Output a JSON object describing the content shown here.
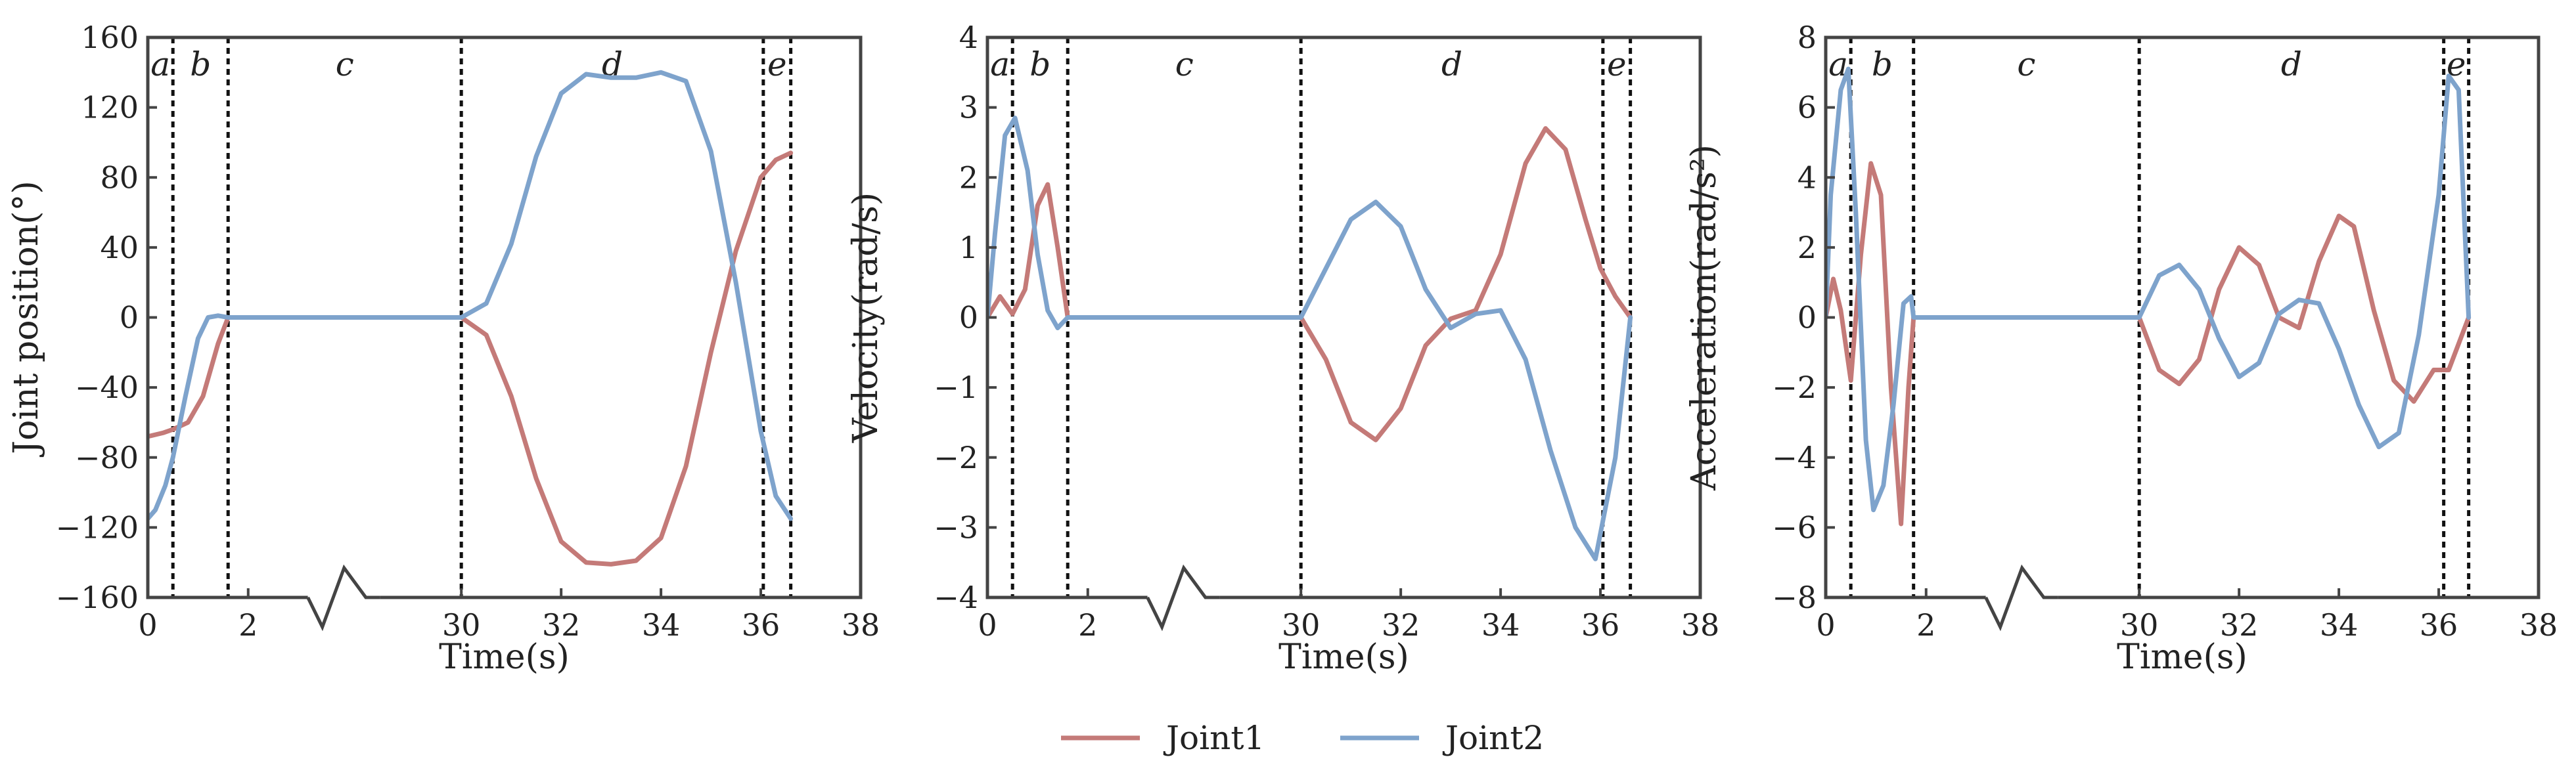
{
  "chart_data": [
    {
      "type": "line",
      "xlabel": "Time(s)",
      "ylabel": "Joint position(°)",
      "xlim": [
        0,
        38
      ],
      "ylim": [
        -160,
        160
      ],
      "xticks": [
        0,
        2,
        30,
        32,
        34,
        36,
        38
      ],
      "yticks": [
        160,
        120,
        80,
        40,
        0,
        -40,
        -80,
        -120,
        -160
      ],
      "ytick_labels": [
        "160",
        "120",
        "80",
        "40",
        "0",
        "−40",
        "−80",
        "−120",
        "−160"
      ],
      "axis_break": "between 2 and 30",
      "phase_boundaries": [
        0.5,
        1.6,
        30,
        36.05,
        36.6
      ],
      "phases": [
        "a",
        "b",
        "c",
        "d",
        "e"
      ],
      "series": [
        {
          "name": "Joint1",
          "color": "#c47a78",
          "x": [
            0,
            0.3,
            0.5,
            0.8,
            1.1,
            1.4,
            1.6,
            2.5,
            30,
            30.5,
            31,
            31.5,
            32,
            32.5,
            33,
            33.5,
            34,
            34.5,
            35,
            35.5,
            36,
            36.3,
            36.6
          ],
          "y": [
            -68,
            -66,
            -64,
            -60,
            -45,
            -15,
            0,
            0,
            0,
            -10,
            -45,
            -92,
            -128,
            -140,
            -141,
            -139,
            -126,
            -85,
            -20,
            38,
            80,
            90,
            94
          ]
        },
        {
          "name": "Joint2",
          "color": "#7ea3cc",
          "x": [
            0,
            0.15,
            0.35,
            0.5,
            0.75,
            1.0,
            1.2,
            1.4,
            1.6,
            2.5,
            30,
            30.5,
            31,
            31.5,
            32,
            32.5,
            33,
            33.5,
            34,
            34.5,
            35,
            35.5,
            36,
            36.3,
            36.6
          ],
          "y": [
            -115,
            -110,
            -96,
            -80,
            -45,
            -12,
            0,
            1,
            0,
            0,
            0,
            8,
            42,
            92,
            128,
            139,
            137,
            137,
            140,
            135,
            95,
            20,
            -65,
            -102,
            -115
          ]
        }
      ]
    },
    {
      "type": "line",
      "xlabel": "Time(s)",
      "ylabel": "Velocity(rad/s)",
      "xlim": [
        0,
        38
      ],
      "ylim": [
        -4,
        4
      ],
      "xticks": [
        0,
        2,
        30,
        32,
        34,
        36,
        38
      ],
      "yticks": [
        4,
        3,
        2,
        1,
        0,
        -1,
        -2,
        -3,
        -4
      ],
      "ytick_labels": [
        "4",
        "3",
        "2",
        "1",
        "0",
        "−1",
        "−2",
        "−3",
        "−4"
      ],
      "axis_break": "between 2 and 30",
      "phase_boundaries": [
        0.5,
        1.6,
        30,
        36.05,
        36.6
      ],
      "phases": [
        "a",
        "b",
        "c",
        "d",
        "e"
      ],
      "series": [
        {
          "name": "Joint1",
          "color": "#c47a78",
          "x": [
            0,
            0.25,
            0.5,
            0.75,
            1.0,
            1.2,
            1.4,
            1.6,
            2.5,
            30,
            30.5,
            31,
            31.5,
            32,
            32.5,
            33,
            33.5,
            34,
            34.5,
            34.9,
            35.3,
            35.7,
            36,
            36.3,
            36.6
          ],
          "y": [
            0,
            0.3,
            0.05,
            0.4,
            1.6,
            1.9,
            1.0,
            0,
            0,
            0,
            -0.6,
            -1.5,
            -1.75,
            -1.3,
            -0.4,
            -0.02,
            0.1,
            0.9,
            2.2,
            2.7,
            2.4,
            1.4,
            0.7,
            0.3,
            0
          ]
        },
        {
          "name": "Joint2",
          "color": "#7ea3cc",
          "x": [
            0,
            0.15,
            0.35,
            0.55,
            0.8,
            1.0,
            1.2,
            1.4,
            1.6,
            2.5,
            30,
            30.5,
            31,
            31.5,
            32,
            32.5,
            33,
            33.5,
            34,
            34.5,
            35,
            35.5,
            35.9,
            36.3,
            36.6
          ],
          "y": [
            0,
            1.2,
            2.6,
            2.85,
            2.1,
            0.9,
            0.1,
            -0.15,
            0,
            0,
            0,
            0.7,
            1.4,
            1.65,
            1.3,
            0.4,
            -0.15,
            0.05,
            0.1,
            -0.6,
            -1.9,
            -3.0,
            -3.45,
            -2.0,
            0
          ]
        }
      ]
    },
    {
      "type": "line",
      "xlabel": "Time(s)",
      "ylabel": "Acceleration(rad/s²)",
      "xlim": [
        0,
        38
      ],
      "ylim": [
        -8,
        8
      ],
      "xticks": [
        0,
        2,
        30,
        32,
        34,
        36,
        38
      ],
      "yticks": [
        8,
        6,
        4,
        2,
        0,
        -2,
        -4,
        -6,
        -8
      ],
      "ytick_labels": [
        "8",
        "6",
        "4",
        "2",
        "0",
        "−2",
        "−4",
        "−6",
        "−8"
      ],
      "axis_break": "between 2 and 30",
      "phase_boundaries": [
        0.5,
        1.75,
        30,
        36.1,
        36.6
      ],
      "phases": [
        "a",
        "b",
        "c",
        "d",
        "e"
      ],
      "series": [
        {
          "name": "Joint1",
          "color": "#c47a78",
          "x": [
            0,
            0.15,
            0.3,
            0.5,
            0.7,
            0.9,
            1.1,
            1.3,
            1.5,
            1.65,
            1.75,
            2.5,
            30,
            30.4,
            30.8,
            31.2,
            31.6,
            32,
            32.4,
            32.8,
            33.2,
            33.6,
            34,
            34.3,
            34.7,
            35.1,
            35.5,
            35.9,
            36.2,
            36.6
          ],
          "y": [
            0,
            1.1,
            0.2,
            -1.8,
            1.8,
            4.4,
            3.5,
            -2.0,
            -5.9,
            -2.0,
            0,
            0,
            0,
            -1.5,
            -1.9,
            -1.2,
            0.8,
            2.0,
            1.5,
            0.0,
            -0.3,
            1.6,
            2.9,
            2.6,
            0.2,
            -1.8,
            -2.4,
            -1.5,
            -1.5,
            0
          ]
        },
        {
          "name": "Joint2",
          "color": "#7ea3cc",
          "x": [
            0,
            0.1,
            0.3,
            0.45,
            0.6,
            0.8,
            0.95,
            1.15,
            1.35,
            1.55,
            1.7,
            1.75,
            2.5,
            30,
            30.4,
            30.8,
            31.2,
            31.6,
            32,
            32.4,
            32.8,
            33.2,
            33.6,
            34,
            34.4,
            34.8,
            35.2,
            35.6,
            36,
            36.2,
            36.4,
            36.6
          ],
          "y": [
            0,
            3.5,
            6.5,
            7.1,
            3.0,
            -3.5,
            -5.5,
            -4.8,
            -2.5,
            0.4,
            0.6,
            0,
            0,
            0,
            1.2,
            1.5,
            0.8,
            -0.6,
            -1.7,
            -1.3,
            0.1,
            0.5,
            0.4,
            -0.9,
            -2.5,
            -3.7,
            -3.3,
            -0.5,
            3.5,
            6.9,
            6.5,
            0
          ]
        }
      ]
    }
  ],
  "legend": {
    "placement": "bottom-center",
    "entries": [
      {
        "label": "Joint1",
        "color": "#c47a78"
      },
      {
        "label": "Joint2",
        "color": "#7ea3cc"
      }
    ]
  }
}
